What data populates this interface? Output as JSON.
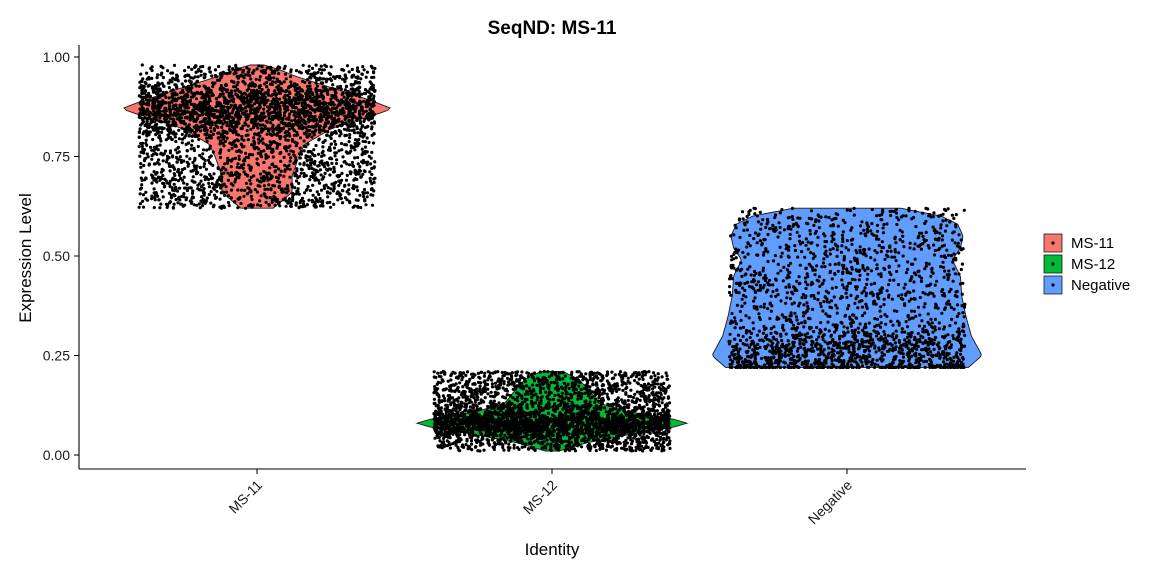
{
  "chart_data": {
    "type": "violin",
    "title": "SeqND: MS-11",
    "xlabel": "Identity",
    "ylabel": "Expression Level",
    "categories": [
      "MS-11",
      "MS-12",
      "Negative"
    ],
    "ylim": [
      0,
      1
    ],
    "yticks": [
      0.0,
      0.25,
      0.5,
      0.75,
      1.0
    ],
    "ytick_labels": [
      "0.00",
      "0.25",
      "0.50",
      "0.75",
      "1.00"
    ],
    "grid": false,
    "legend": {
      "position": "right",
      "entries": [
        "MS-11",
        "MS-12",
        "Negative"
      ]
    },
    "series": [
      {
        "category": "MS-11",
        "color": "#F8766D",
        "range": [
          0.62,
          0.98
        ],
        "peak": 0.87,
        "point_count": 3200,
        "profile": [
          [
            0.62,
            0.12
          ],
          [
            0.66,
            0.26
          ],
          [
            0.7,
            0.26
          ],
          [
            0.74,
            0.3
          ],
          [
            0.78,
            0.35
          ],
          [
            0.82,
            0.55
          ],
          [
            0.86,
            0.92
          ],
          [
            0.87,
            1.0
          ],
          [
            0.89,
            0.85
          ],
          [
            0.92,
            0.58
          ],
          [
            0.95,
            0.3
          ],
          [
            0.97,
            0.15
          ],
          [
            0.98,
            0.05
          ]
        ]
      },
      {
        "category": "MS-12",
        "color": "#00BA38",
        "range": [
          0.01,
          0.21
        ],
        "peak": 0.08,
        "point_count": 3200,
        "profile": [
          [
            0.01,
            0.05
          ],
          [
            0.03,
            0.25
          ],
          [
            0.05,
            0.55
          ],
          [
            0.07,
            0.9
          ],
          [
            0.08,
            1.0
          ],
          [
            0.09,
            0.9
          ],
          [
            0.11,
            0.55
          ],
          [
            0.13,
            0.35
          ],
          [
            0.16,
            0.28
          ],
          [
            0.19,
            0.2
          ],
          [
            0.21,
            0.08
          ]
        ]
      },
      {
        "category": "Negative",
        "color": "#619CFF",
        "range": [
          0.22,
          0.62
        ],
        "peak": 0.25,
        "point_count": 2000,
        "profile": [
          [
            0.22,
            0.9
          ],
          [
            0.25,
            1.0
          ],
          [
            0.3,
            0.92
          ],
          [
            0.35,
            0.88
          ],
          [
            0.4,
            0.85
          ],
          [
            0.45,
            0.84
          ],
          [
            0.49,
            0.78
          ],
          [
            0.52,
            0.84
          ],
          [
            0.55,
            0.86
          ],
          [
            0.58,
            0.82
          ],
          [
            0.6,
            0.7
          ],
          [
            0.62,
            0.4
          ]
        ]
      }
    ]
  }
}
